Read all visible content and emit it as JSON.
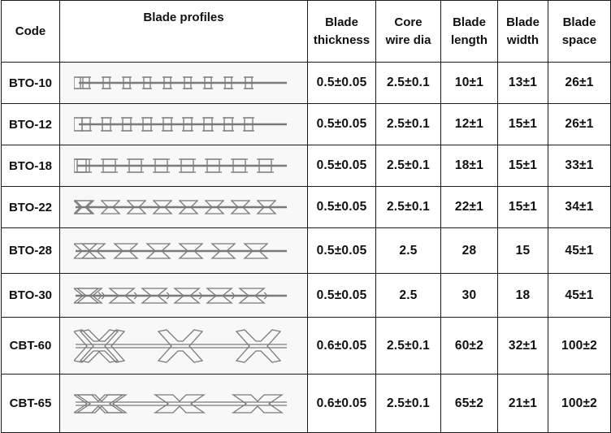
{
  "headers": {
    "code": "Code",
    "profile": "Blade profiles",
    "thickness": [
      "Blade",
      "thickness"
    ],
    "core": [
      "Core",
      "wire dia"
    ],
    "length": [
      "Blade",
      "length"
    ],
    "width": [
      "Blade",
      "width"
    ],
    "space": [
      "Blade",
      "space"
    ]
  },
  "rows": [
    {
      "code": "BTO-10",
      "profile": "bto10-profile-icon",
      "thickness": "0.5±0.05",
      "core": "2.5±0.1",
      "length": "10±1",
      "width": "13±1",
      "space": "26±1"
    },
    {
      "code": "BTO-12",
      "profile": "bto12-profile-icon",
      "thickness": "0.5±0.05",
      "core": "2.5±0.1",
      "length": "12±1",
      "width": "15±1",
      "space": "26±1"
    },
    {
      "code": "BTO-18",
      "profile": "bto18-profile-icon",
      "thickness": "0.5±0.05",
      "core": "2.5±0.1",
      "length": "18±1",
      "width": "15±1",
      "space": "33±1"
    },
    {
      "code": "BTO-22",
      "profile": "bto22-profile-icon",
      "thickness": "0.5±0.05",
      "core": "2.5±0.1",
      "length": "22±1",
      "width": "15±1",
      "space": "34±1"
    },
    {
      "code": "BTO-28",
      "profile": "bto28-profile-icon",
      "thickness": "0.5±0.05",
      "core": "2.5",
      "length": "28",
      "width": "15",
      "space": "45±1"
    },
    {
      "code": "BTO-30",
      "profile": "bto30-profile-icon",
      "thickness": "0.5±0.05",
      "core": "2.5",
      "length": "30",
      "width": "18",
      "space": "45±1"
    },
    {
      "code": "CBT-60",
      "profile": "cbt60-profile-icon",
      "thickness": "0.6±0.05",
      "core": "2.5±0.1",
      "length": "60±2",
      "width": "32±1",
      "space": "100±2"
    },
    {
      "code": "CBT-65",
      "profile": "cbt65-profile-icon",
      "thickness": "0.6±0.05",
      "core": "2.5±0.1",
      "length": "65±2",
      "width": "21±1",
      "space": "100±2"
    }
  ]
}
